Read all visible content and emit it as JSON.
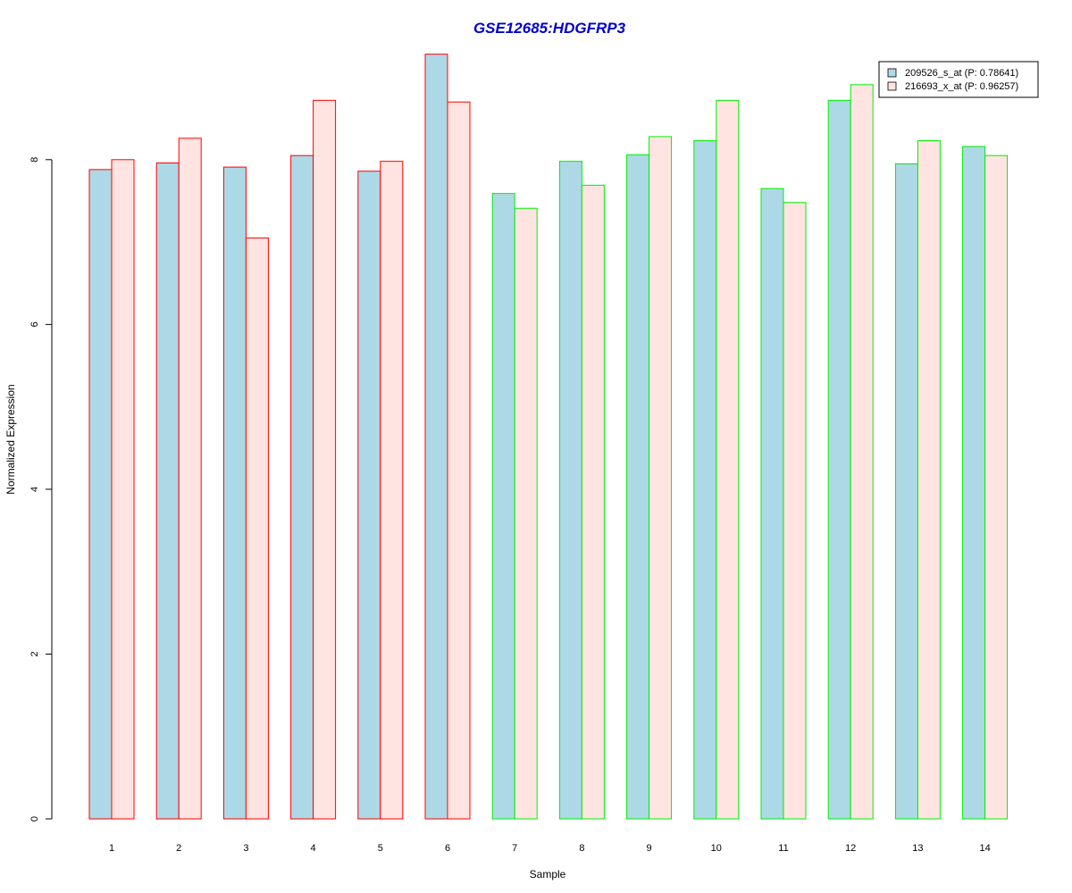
{
  "chart_data": {
    "type": "bar",
    "title": "GSE12685:HDGFRP3",
    "xlabel": "Sample",
    "ylabel": "Normalized Expression",
    "categories": [
      "1",
      "2",
      "3",
      "4",
      "5",
      "6",
      "7",
      "8",
      "9",
      "10",
      "11",
      "12",
      "13",
      "14"
    ],
    "series": [
      {
        "name": "209526_s_at (P: 0.78641)",
        "fill": "#add8e6",
        "values": [
          7.88,
          7.96,
          7.91,
          8.05,
          7.86,
          9.28,
          7.59,
          7.98,
          8.06,
          8.23,
          7.65,
          8.72,
          7.95,
          8.16
        ]
      },
      {
        "name": "216693_x_at (P: 0.96257)",
        "fill": "#ffe4e1",
        "values": [
          8.0,
          8.26,
          7.05,
          8.72,
          7.98,
          8.7,
          7.41,
          7.69,
          8.28,
          8.72,
          7.48,
          8.91,
          8.23,
          8.05
        ]
      }
    ],
    "group_border_colors": [
      "#ff0000",
      "#ff0000",
      "#ff0000",
      "#ff0000",
      "#ff0000",
      "#ff0000",
      "#00ee00",
      "#00ee00",
      "#00ee00",
      "#00ee00",
      "#00ee00",
      "#00ee00",
      "#00ee00",
      "#00ee00"
    ],
    "yticks": [
      "0",
      "2",
      "4",
      "6",
      "8"
    ],
    "ylim": [
      0,
      9.45
    ],
    "grid": false,
    "legend_position": "top-right",
    "title_color": "#0000cc"
  }
}
